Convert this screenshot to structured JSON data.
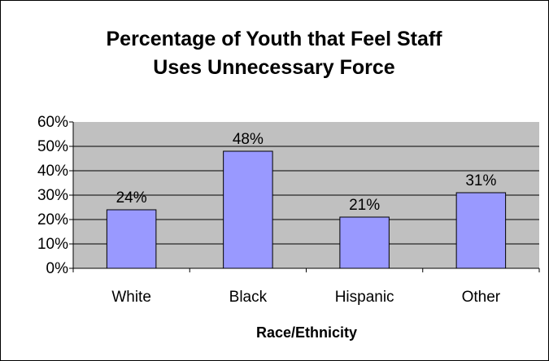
{
  "chart_data": {
    "type": "bar",
    "title_lines": [
      "Percentage of Youth that Feel Staff",
      "Uses Unnecessary Force"
    ],
    "xlabel": "Race/Ethnicity",
    "ylabel": "",
    "categories": [
      "White",
      "Black",
      "Hispanic",
      "Other"
    ],
    "values": [
      24,
      48,
      21,
      31
    ],
    "data_labels": [
      "24%",
      "48%",
      "21%",
      "31%"
    ],
    "ylim": [
      0,
      60
    ],
    "yticks": [
      0,
      10,
      20,
      30,
      40,
      50,
      60
    ],
    "ytick_labels": [
      "0%",
      "10%",
      "20%",
      "30%",
      "40%",
      "50%",
      "60%"
    ],
    "grid": true,
    "legend": "none",
    "colors": {
      "bar_fill": "#9999ff",
      "bar_stroke": "#000000",
      "plot_background": "#c0c0c0",
      "gridline": "#000000",
      "frame_border": "#000000"
    }
  }
}
